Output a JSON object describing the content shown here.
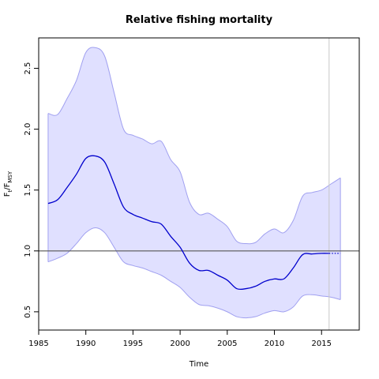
{
  "chart_data": {
    "type": "line",
    "title": "Relative fishing mortality",
    "xlabel": "Time",
    "ylabel": {
      "main": "F",
      "sub1": "t",
      "sep": "/F",
      "sub2": "MSY"
    },
    "xlim": [
      1985,
      2019
    ],
    "ylim": [
      0.35,
      2.75
    ],
    "xticks": [
      1985,
      1990,
      1995,
      2000,
      2005,
      2010,
      2015
    ],
    "yticks": [
      0.5,
      1.0,
      1.5,
      2.0,
      2.5
    ],
    "ytick_labels": [
      "0.5",
      "1.0",
      "1.5",
      "2.0",
      "2.5"
    ],
    "reference_line_y": 1.0,
    "last_data_year": 2015.8,
    "series": [
      {
        "role": "estimate",
        "color": "#0000cd",
        "x": [
          1986,
          1987,
          1988,
          1989,
          1990,
          1991,
          1992,
          1993,
          1994,
          1995,
          1996,
          1997,
          1998,
          1999,
          2000,
          2001,
          2002,
          2003,
          2004,
          2005,
          2006,
          2007,
          2008,
          2009,
          2010,
          2011,
          2012,
          2013,
          2014,
          2015,
          2015.8
        ],
        "y": [
          1.39,
          1.42,
          1.52,
          1.63,
          1.76,
          1.78,
          1.73,
          1.55,
          1.36,
          1.3,
          1.27,
          1.24,
          1.22,
          1.12,
          1.03,
          0.9,
          0.84,
          0.84,
          0.8,
          0.76,
          0.69,
          0.69,
          0.71,
          0.75,
          0.77,
          0.77,
          0.86,
          0.97,
          0.975,
          0.98,
          0.98
        ]
      },
      {
        "role": "upper-bound",
        "color": "#a0a0f0",
        "x": [
          1986,
          1987,
          1988,
          1989,
          1990,
          1991,
          1992,
          1993,
          1994,
          1995,
          1996,
          1997,
          1998,
          1999,
          2000,
          2001,
          2002,
          2003,
          2004,
          2005,
          2006,
          2007,
          2008,
          2009,
          2010,
          2011,
          2012,
          2013,
          2014,
          2015,
          2016,
          2017
        ],
        "y": [
          2.13,
          2.12,
          2.25,
          2.4,
          2.63,
          2.67,
          2.6,
          2.3,
          2.0,
          1.95,
          1.92,
          1.88,
          1.9,
          1.75,
          1.65,
          1.4,
          1.3,
          1.31,
          1.26,
          1.2,
          1.08,
          1.06,
          1.07,
          1.14,
          1.18,
          1.15,
          1.25,
          1.45,
          1.48,
          1.5,
          1.55,
          1.6
        ]
      },
      {
        "role": "lower-bound",
        "color": "#a0a0f0",
        "x": [
          1986,
          1987,
          1988,
          1989,
          1990,
          1991,
          1992,
          1993,
          1994,
          1995,
          1996,
          1997,
          1998,
          1999,
          2000,
          2001,
          2002,
          2003,
          2004,
          2005,
          2006,
          2007,
          2008,
          2009,
          2010,
          2011,
          2012,
          2013,
          2014,
          2015,
          2016,
          2017
        ],
        "y": [
          0.91,
          0.94,
          0.98,
          1.06,
          1.15,
          1.19,
          1.15,
          1.03,
          0.91,
          0.88,
          0.86,
          0.83,
          0.8,
          0.75,
          0.7,
          0.62,
          0.56,
          0.55,
          0.53,
          0.5,
          0.46,
          0.45,
          0.46,
          0.49,
          0.51,
          0.5,
          0.54,
          0.63,
          0.64,
          0.63,
          0.62,
          0.6
        ]
      },
      {
        "role": "prediction",
        "color": "#0000cd",
        "x": [
          2015.8,
          2016.2,
          2016.6,
          2017
        ],
        "y": [
          0.98,
          0.98,
          0.98,
          0.98
        ]
      }
    ],
    "colors": {
      "band_fill": "#e0e0ff",
      "band_edge": "#a0a0f0",
      "estimate_line": "#0000cd",
      "reference_line": "#555555",
      "last_data_line": "#c8c8c8",
      "frame": "#000000"
    }
  }
}
